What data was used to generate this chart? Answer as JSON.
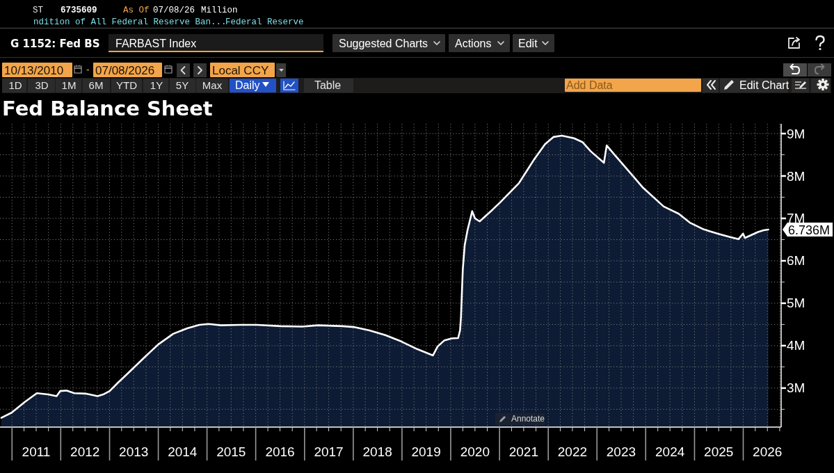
{
  "chart_data": {
    "type": "area",
    "title": "Fed Balance Sheet",
    "annotations": [
      "ST",
      "6735609",
      "As Of",
      "07/08/26",
      "Million",
      "ndition of All Federal Reserve Ban...",
      "Federal Reserve",
      "G 1152: Fed BS",
      "FARBAST Index",
      "Suggested Charts",
      "Actions",
      "Edit",
      "10/13/2010",
      "-",
      "07/08/2026",
      "Local CCY",
      "1D",
      "3D",
      "1M",
      "6M",
      "YTD",
      "1Y",
      "5Y",
      "Max",
      "Daily",
      "Table",
      "Add Data",
      "Edit Chart",
      "Annotate"
    ],
    "x": [
      "2010-10-13",
      "2010-12-29",
      "2011-04-06",
      "2011-07-06",
      "2011-09-28",
      "2011-12-01",
      "2011-12-28",
      "2012-02-15",
      "2012-04-11",
      "2012-07-04",
      "2012-10-03",
      "2012-11-14",
      "2013-01-02",
      "2013-03-06",
      "2013-05-22",
      "2013-09-18",
      "2014-01-01",
      "2014-04-23",
      "2014-08-06",
      "2014-11-05",
      "2015-01-14",
      "2015-04-15",
      "2015-09-09",
      "2016-01-06",
      "2016-07-06",
      "2016-12-14",
      "2017-04-12",
      "2017-10-11",
      "2018-01-03",
      "2018-05-02",
      "2018-08-29",
      "2018-12-26",
      "2019-04-24",
      "2019-08-21",
      "2019-09-25",
      "2019-11-13",
      "2020-01-08",
      "2020-02-26",
      "2020-03-11",
      "2020-03-18",
      "2020-03-25",
      "2020-04-01",
      "2020-04-15",
      "2020-05-06",
      "2020-06-10",
      "2020-07-01",
      "2020-08-05",
      "2020-11-11",
      "2021-01-06",
      "2021-05-26",
      "2021-09-15",
      "2021-12-08",
      "2022-02-09",
      "2022-04-13",
      "2022-07-13",
      "2022-09-14",
      "2022-11-16",
      "2023-02-22",
      "2023-03-15",
      "2023-05-10",
      "2023-08-23",
      "2023-12-13",
      "2024-05-15",
      "2024-09-04",
      "2024-11-27",
      "2025-03-12",
      "2025-06-25",
      "2025-09-24",
      "2025-11-26",
      "2025-12-31",
      "2026-01-14",
      "2026-04-22",
      "2026-06-03",
      "2026-07-08"
    ],
    "series": [
      {
        "color": "#0d1b34",
        "values": [
          2.3,
          2.42,
          2.67,
          2.88,
          2.85,
          2.81,
          2.93,
          2.94,
          2.88,
          2.87,
          2.81,
          2.85,
          2.93,
          3.13,
          3.36,
          3.72,
          4.03,
          4.28,
          4.41,
          4.49,
          4.51,
          4.48,
          4.49,
          4.49,
          4.46,
          4.45,
          4.48,
          4.46,
          4.44,
          4.36,
          4.25,
          4.1,
          3.92,
          3.77,
          3.98,
          4.12,
          4.17,
          4.18,
          4.36,
          4.67,
          5.25,
          5.81,
          6.37,
          6.72,
          7.17,
          7.0,
          6.93,
          7.21,
          7.38,
          7.83,
          8.38,
          8.75,
          8.92,
          8.95,
          8.89,
          8.8,
          8.58,
          8.31,
          8.72,
          8.51,
          8.13,
          7.72,
          7.28,
          7.11,
          6.9,
          6.74,
          6.64,
          6.56,
          6.51,
          6.64,
          6.54,
          6.68,
          6.72,
          6.736
        ],
        "value_labels": [
          null,
          null,
          null,
          null,
          null,
          null,
          null,
          null,
          null,
          null,
          null,
          null,
          null,
          null,
          null,
          null,
          null,
          null,
          null,
          null,
          null,
          null,
          null,
          null,
          null,
          null,
          null,
          null,
          null,
          null,
          null,
          null,
          null,
          null,
          null,
          null,
          null,
          null,
          null,
          null,
          null,
          null,
          null,
          null,
          null,
          null,
          null,
          null,
          null,
          null,
          null,
          null,
          null,
          null,
          null,
          null,
          null,
          null,
          null,
          null,
          null,
          null,
          null,
          null,
          null,
          null,
          null,
          null,
          null,
          null,
          null,
          null,
          null,
          "6.736M"
        ]
      }
    ],
    "xlim": [
      "2010-10-03",
      "2026-10-12"
    ],
    "xticks": [
      {
        "value": "2011-01-01",
        "label": null
      },
      {
        "value": "2011-04-01",
        "label": null
      },
      {
        "value": "2011-07-01",
        "label": "2011"
      },
      {
        "value": "2011-10-01",
        "label": null
      },
      {
        "value": "2012-01-01",
        "label": null
      },
      {
        "value": "2012-04-01",
        "label": null
      },
      {
        "value": "2012-07-01",
        "label": "2012"
      },
      {
        "value": "2012-10-01",
        "label": null
      },
      {
        "value": "2013-01-01",
        "label": null
      },
      {
        "value": "2013-04-01",
        "label": null
      },
      {
        "value": "2013-07-01",
        "label": "2013"
      },
      {
        "value": "2013-10-01",
        "label": null
      },
      {
        "value": "2014-01-01",
        "label": null
      },
      {
        "value": "2014-04-01",
        "label": null
      },
      {
        "value": "2014-07-01",
        "label": "2014"
      },
      {
        "value": "2014-10-01",
        "label": null
      },
      {
        "value": "2015-01-01",
        "label": null
      },
      {
        "value": "2015-04-01",
        "label": null
      },
      {
        "value": "2015-07-01",
        "label": "2015"
      },
      {
        "value": "2015-10-01",
        "label": null
      },
      {
        "value": "2016-01-01",
        "label": null
      },
      {
        "value": "2016-04-01",
        "label": null
      },
      {
        "value": "2016-07-01",
        "label": "2016"
      },
      {
        "value": "2016-10-01",
        "label": null
      },
      {
        "value": "2017-01-01",
        "label": null
      },
      {
        "value": "2017-04-01",
        "label": null
      },
      {
        "value": "2017-07-01",
        "label": "2017"
      },
      {
        "value": "2017-10-01",
        "label": null
      },
      {
        "value": "2018-01-01",
        "label": null
      },
      {
        "value": "2018-04-01",
        "label": null
      },
      {
        "value": "2018-07-01",
        "label": "2018"
      },
      {
        "value": "2018-10-01",
        "label": null
      },
      {
        "value": "2019-01-01",
        "label": null
      },
      {
        "value": "2019-04-01",
        "label": null
      },
      {
        "value": "2019-07-01",
        "label": "2019"
      },
      {
        "value": "2019-10-01",
        "label": null
      },
      {
        "value": "2020-01-01",
        "label": null
      },
      {
        "value": "2020-04-01",
        "label": null
      },
      {
        "value": "2020-07-01",
        "label": "2020"
      },
      {
        "value": "2020-10-01",
        "label": null
      },
      {
        "value": "2021-01-01",
        "label": null
      },
      {
        "value": "2021-04-01",
        "label": null
      },
      {
        "value": "2021-07-01",
        "label": "2021"
      },
      {
        "value": "2021-10-01",
        "label": null
      },
      {
        "value": "2022-01-01",
        "label": null
      },
      {
        "value": "2022-04-01",
        "label": null
      },
      {
        "value": "2022-07-01",
        "label": "2022"
      },
      {
        "value": "2022-10-01",
        "label": null
      },
      {
        "value": "2023-01-01",
        "label": null
      },
      {
        "value": "2023-04-01",
        "label": null
      },
      {
        "value": "2023-07-01",
        "label": "2023"
      },
      {
        "value": "2023-10-01",
        "label": null
      },
      {
        "value": "2024-01-01",
        "label": null
      },
      {
        "value": "2024-04-01",
        "label": null
      },
      {
        "value": "2024-07-01",
        "label": "2024"
      },
      {
        "value": "2024-10-01",
        "label": null
      },
      {
        "value": "2025-01-01",
        "label": null
      },
      {
        "value": "2025-04-01",
        "label": null
      },
      {
        "value": "2025-07-01",
        "label": "2025"
      },
      {
        "value": "2025-10-01",
        "label": null
      },
      {
        "value": "2026-01-01",
        "label": null
      },
      {
        "value": "2026-04-01",
        "label": null
      },
      {
        "value": "2026-07-01",
        "label": "2026"
      },
      {
        "value": "2026-10-01",
        "label": null
      }
    ],
    "ylim": [
      2.08,
      9.23
    ],
    "yticks": [
      {
        "value": 2.5,
        "label": null
      },
      {
        "value": 3,
        "label": "3M"
      },
      {
        "value": 3.5,
        "label": null
      },
      {
        "value": 4,
        "label": "4M"
      },
      {
        "value": 4.5,
        "label": null
      },
      {
        "value": 5,
        "label": "5M"
      },
      {
        "value": 5.5,
        "label": null
      },
      {
        "value": 6,
        "label": "6M"
      },
      {
        "value": 6.5,
        "label": null
      },
      {
        "value": 7,
        "label": "7M"
      },
      {
        "value": 7.5,
        "label": null
      },
      {
        "value": 8,
        "label": "8M"
      },
      {
        "value": 8.5,
        "label": null
      },
      {
        "value": 9,
        "label": "9M"
      }
    ],
    "grid": true
  }
}
